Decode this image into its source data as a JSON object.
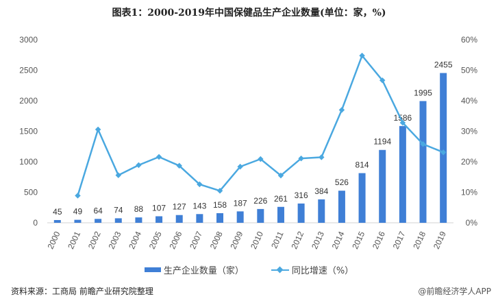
{
  "chart_data": {
    "type": "bar+line",
    "title": "图表1：2000-2019年中国保健品生产企业数量(单位：家，%)",
    "categories": [
      "2000",
      "2001",
      "2002",
      "2003",
      "2004",
      "2005",
      "2006",
      "2007",
      "2008",
      "2009",
      "2010",
      "2011",
      "2012",
      "2013",
      "2014",
      "2015",
      "2016",
      "2017",
      "2018",
      "2019"
    ],
    "series": [
      {
        "name": "生产企业数量（家）",
        "type": "bar",
        "axis": "left",
        "color": "#3f7fd6",
        "values": [
          45,
          49,
          64,
          74,
          88,
          107,
          127,
          143,
          158,
          187,
          226,
          261,
          316,
          384,
          526,
          814,
          1194,
          1586,
          1995,
          2455
        ]
      },
      {
        "name": "同比增速（%）",
        "type": "line",
        "axis": "right",
        "color": "#4aa8e0",
        "values": [
          null,
          8.9,
          30.6,
          15.6,
          18.9,
          21.6,
          18.7,
          12.6,
          10.5,
          18.4,
          20.9,
          15.5,
          21.1,
          21.5,
          37.0,
          54.8,
          46.7,
          32.8,
          25.8,
          23.1
        ]
      }
    ],
    "y_left": {
      "range": [
        0,
        3000
      ],
      "ticks": [
        "0",
        "500",
        "1000",
        "1500",
        "2000",
        "2500",
        "3000"
      ]
    },
    "y_right": {
      "range": [
        0,
        60
      ],
      "ticks": [
        "0%",
        "10%",
        "20%",
        "30%",
        "40%",
        "50%",
        "60%"
      ]
    },
    "grid": false,
    "legend": "bottom"
  },
  "footer": {
    "source": "资料来源：工商局 前瞻产业研究院整理",
    "brand": "@前瞻经济学人APP"
  }
}
